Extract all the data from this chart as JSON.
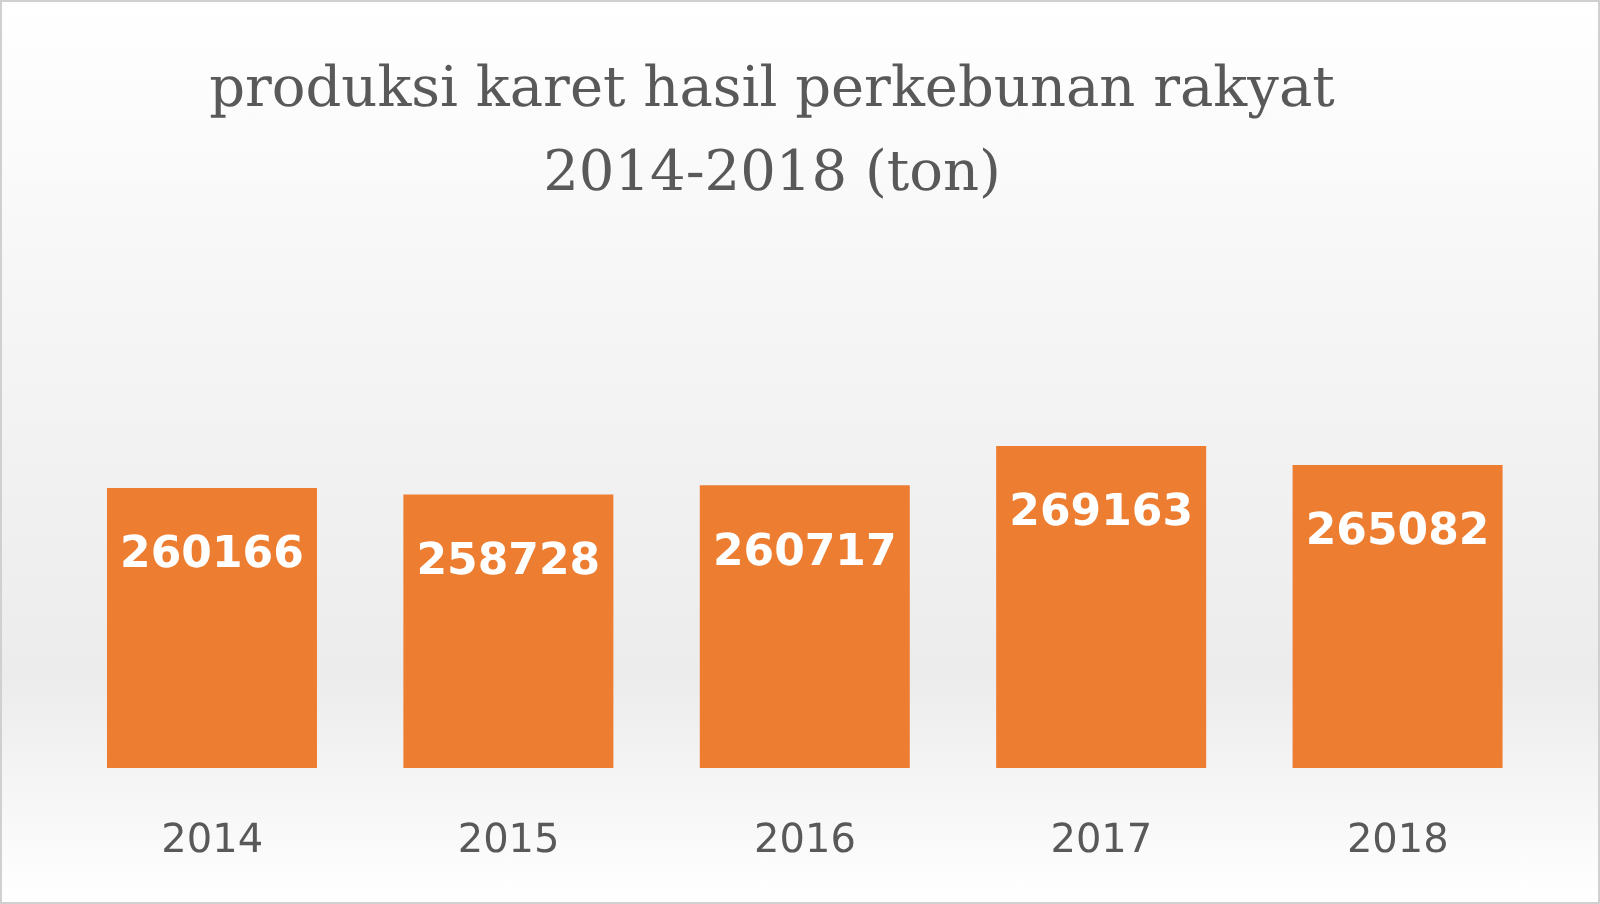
{
  "chart_data": {
    "type": "bar",
    "title": "produksi karet hasil perkebunan rakyat 2014-2018 (ton)",
    "categories": [
      "2014",
      "2015",
      "2016",
      "2017",
      "2018"
    ],
    "values": [
      260166,
      258728,
      260717,
      269163,
      265082
    ],
    "color": "#ed7d31",
    "ylim": [
      200000,
      269163
    ],
    "tick_labels": "x",
    "data_labels": true
  }
}
